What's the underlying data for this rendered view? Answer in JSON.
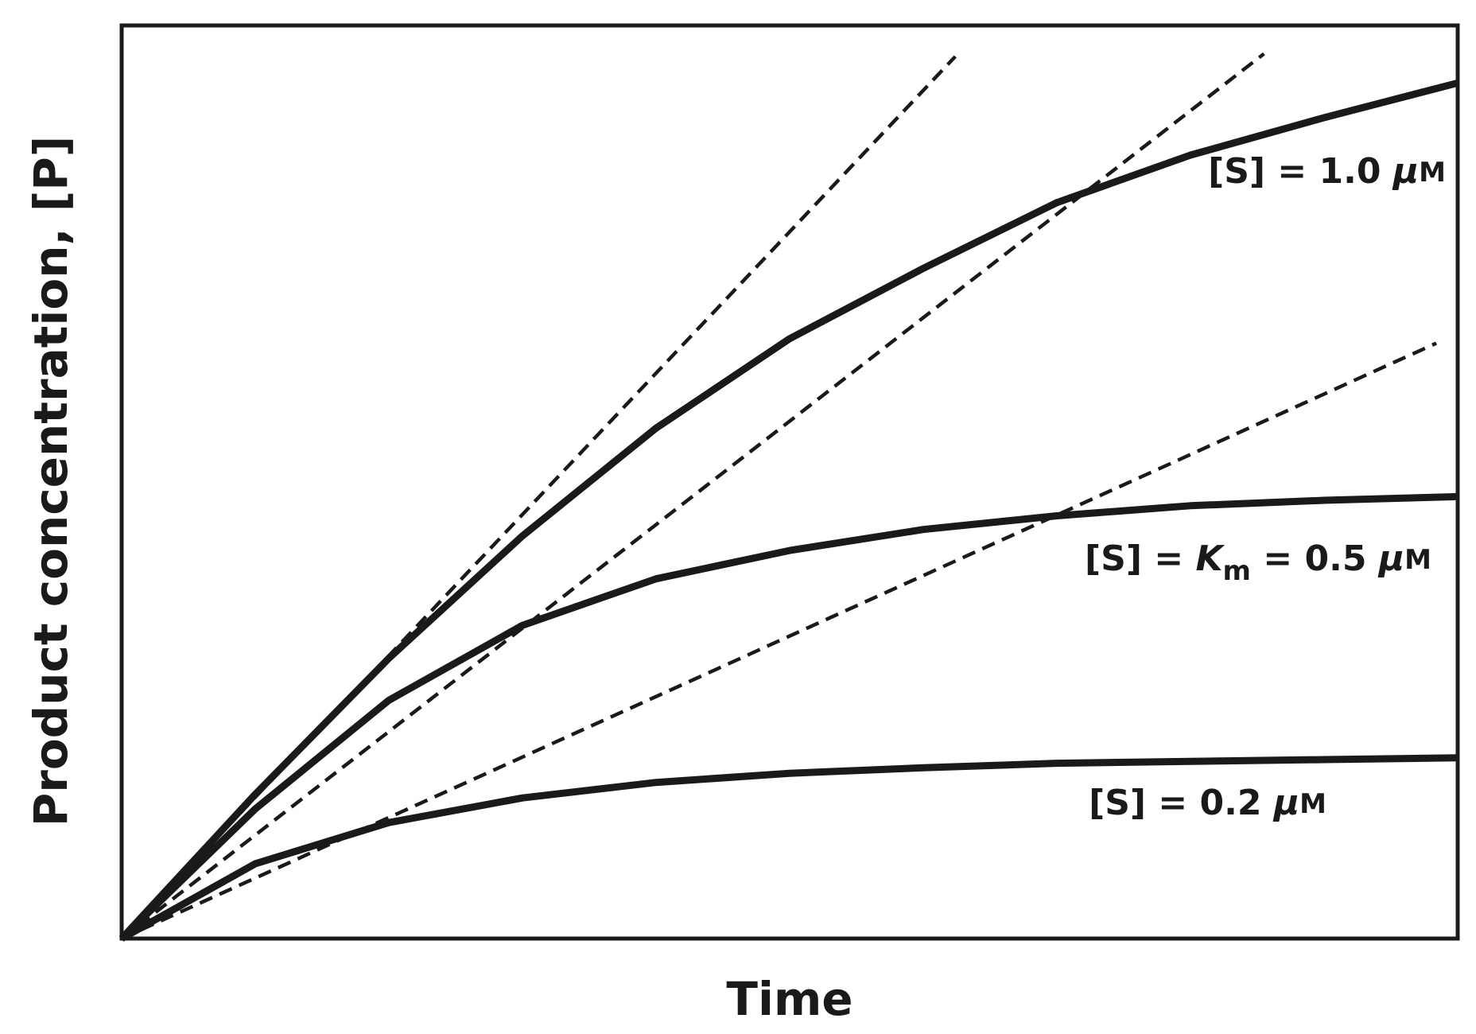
{
  "chart_data": {
    "type": "line",
    "xlabel": "Time",
    "ylabel": "Product concentration, [P]",
    "xlim": [
      0,
      1
    ],
    "ylim": [
      0,
      1
    ],
    "x": [
      0,
      0.1,
      0.2,
      0.3,
      0.4,
      0.5,
      0.6,
      0.7,
      0.8,
      0.9,
      1.0
    ],
    "series": [
      {
        "label": [
          {
            "text": "[S] = 1.0 "
          },
          {
            "text": "μ",
            "style": "italic"
          },
          {
            "text": "M",
            "style": "small"
          }
        ],
        "color": "#1a1a1a",
        "values": [
          0,
          0.158,
          0.307,
          0.441,
          0.559,
          0.657,
          0.734,
          0.806,
          0.858,
          0.899,
          0.937
        ]
      },
      {
        "label": [
          {
            "text": "[S] = "
          },
          {
            "text": "K",
            "style": "italic"
          },
          {
            "text": "m",
            "style": "sub"
          },
          {
            "text": " = 0.5 "
          },
          {
            "text": "μ",
            "style": "italic"
          },
          {
            "text": "M",
            "style": "small"
          }
        ],
        "color": "#1a1a1a",
        "values": [
          0,
          0.142,
          0.261,
          0.343,
          0.394,
          0.425,
          0.448,
          0.463,
          0.474,
          0.48,
          0.484
        ]
      },
      {
        "label": [
          {
            "text": "[S] = 0.2 "
          },
          {
            "text": "μ",
            "style": "italic"
          },
          {
            "text": "M",
            "style": "small"
          }
        ],
        "color": "#1a1a1a",
        "values": [
          0,
          0.082,
          0.127,
          0.154,
          0.171,
          0.181,
          0.187,
          0.192,
          0.194,
          0.196,
          0.198
        ]
      },
      {
        "dashed": true,
        "color": "#1a1a1a",
        "x": [
          0,
          0.624
        ],
        "values": [
          0,
          0.966
        ]
      },
      {
        "dashed": true,
        "color": "#1a1a1a",
        "x": [
          0,
          0.855
        ],
        "values": [
          0,
          0.969
        ]
      },
      {
        "dashed": true,
        "color": "#1a1a1a",
        "x": [
          0,
          0.984
        ],
        "values": [
          0,
          0.652
        ]
      }
    ]
  }
}
